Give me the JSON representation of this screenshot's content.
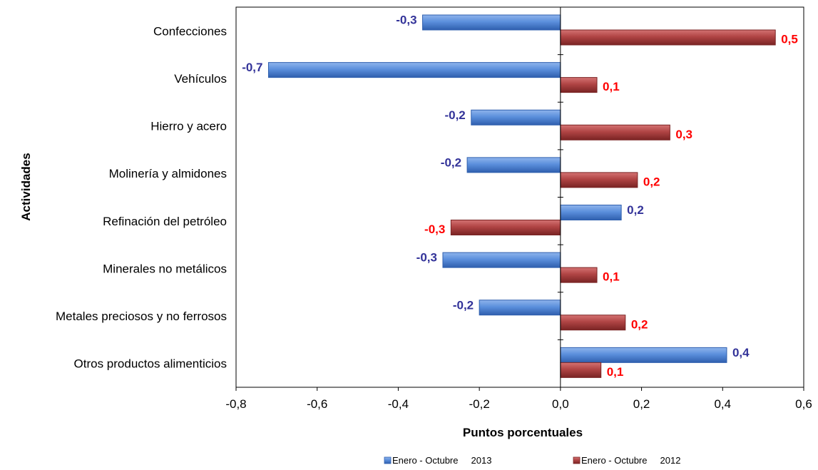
{
  "chart_data": {
    "type": "bar",
    "orientation": "horizontal",
    "categories": [
      "Confecciones",
      "Vehículos",
      "Hierro y acero",
      "Molinería y almidones",
      "Refinación del petróleo",
      "Minerales no metálicos",
      "Metales preciosos  y no ferrosos",
      "Otros productos alimenticios"
    ],
    "series": [
      {
        "name": "Enero - Octubre     2013",
        "values": [
          -0.34,
          -0.72,
          -0.22,
          -0.23,
          0.15,
          -0.29,
          -0.2,
          0.41
        ],
        "labels": [
          "-0,3",
          "-0,7",
          "-0,2",
          "-0,2",
          "0,2",
          "-0,3",
          "-0,2",
          "0,4"
        ],
        "color": "#4a7fd0",
        "label_color": "#333399"
      },
      {
        "name": "Enero - Octubre     2012",
        "values": [
          0.53,
          0.09,
          0.27,
          0.19,
          -0.27,
          0.09,
          0.16,
          0.1
        ],
        "labels": [
          "0,5",
          "0,1",
          "0,3",
          "0,2",
          "-0,3",
          "0,1",
          "0,2",
          "0,1"
        ],
        "color": "#a8393a",
        "label_color": "#ff0000"
      }
    ],
    "xlim": [
      -0.8,
      0.6
    ],
    "xticks": [
      -0.8,
      -0.6,
      -0.4,
      -0.2,
      0.0,
      0.2,
      0.4,
      0.6
    ],
    "xtick_labels": [
      "-0,8",
      "-0,6",
      "-0,4",
      "-0,2",
      "0,0",
      "0,2",
      "0,4",
      "0,6"
    ],
    "xlabel": "Puntos porcentuales",
    "ylabel": "Actividades",
    "grid": false,
    "legend_position": "bottom"
  }
}
